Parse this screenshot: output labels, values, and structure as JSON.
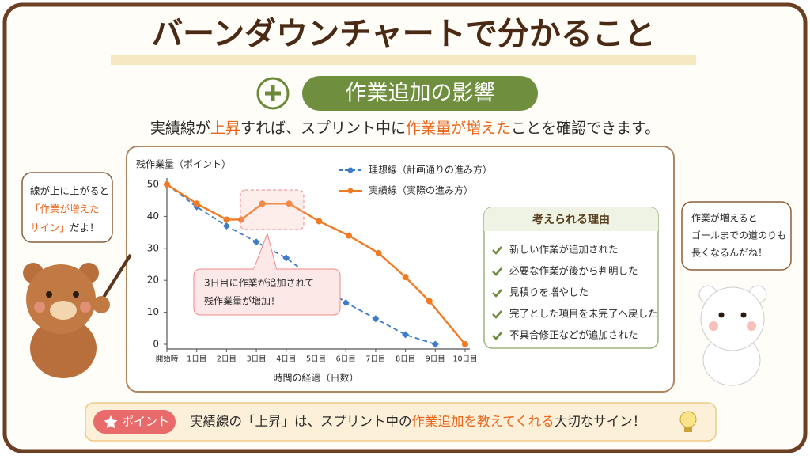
{
  "title": "バーンダウンチャートで分かること",
  "section_label": "作業追加の影響",
  "subtitle": [
    "実績線が",
    "上昇",
    "すれば、スプリント中に",
    "作業量が増えた",
    "ことを確認できます。"
  ],
  "bear_left_bubble": [
    "線が上に上がると",
    "「作業が増えた",
    "サイン」",
    "だよ！"
  ],
  "bear_right_bubble": [
    "作業が増えると",
    "ゴールまでの道のりも",
    "長くなるんだね！"
  ],
  "chart_data": {
    "type": "line",
    "y_label": "残作業量（ポイント）",
    "x_label": "時間の経過（日数）",
    "xlim": [
      0,
      10
    ],
    "ylim": [
      0,
      50
    ],
    "yticks": [
      0,
      10,
      20,
      30,
      40,
      50
    ],
    "xticks": [
      {
        "value": 0,
        "label": "開始時"
      },
      {
        "value": 1,
        "label": "1日目"
      },
      {
        "value": 2,
        "label": "2日目"
      },
      {
        "value": 3,
        "label": "3日目"
      },
      {
        "value": 4,
        "label": "4日目"
      },
      {
        "value": 5,
        "label": "5日目"
      },
      {
        "value": 6,
        "label": "6日目"
      },
      {
        "value": 7,
        "label": "7日目"
      },
      {
        "value": 8,
        "label": "8日目"
      },
      {
        "value": 9,
        "label": "9日目"
      },
      {
        "value": 10,
        "label": "10日目"
      }
    ],
    "series": [
      {
        "name": "理想線（計画通りの進み方）",
        "color": "#3d7cc9",
        "dashed": true,
        "x": [
          0,
          1,
          2,
          3,
          4,
          5,
          6,
          7,
          8,
          9
        ],
        "values": [
          50,
          43,
          37,
          32,
          27,
          20,
          13,
          8,
          3,
          0
        ]
      },
      {
        "name": "実績線（実際の進み方）",
        "color": "#f07b24",
        "dashed": false,
        "x": [
          0,
          1,
          2,
          2.5,
          3.2,
          4.1,
          5.1,
          6.1,
          7.1,
          8,
          8.8,
          10
        ],
        "values": [
          50,
          44,
          39,
          39,
          44,
          44,
          38.5,
          34,
          28.5,
          21,
          13.5,
          0
        ]
      }
    ],
    "annotation": [
      "3日目に作業が追加されて",
      "残作業量が増加！"
    ]
  },
  "reasons": {
    "title": "考えられる理由",
    "items": [
      "新しい作業が追加された",
      "必要な作業が後から判明した",
      "見積りを増やした",
      "完了とした項目を未完了へ戻した",
      "不具合修正などが追加された"
    ]
  },
  "point": {
    "badge": "ポイント",
    "text": [
      "実績線の「上昇」は、スプリント中の",
      "作業追加を教えてくれる",
      "大切なサイン！"
    ]
  }
}
